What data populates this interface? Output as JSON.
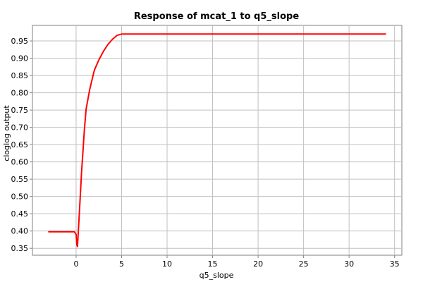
{
  "chart_data": {
    "type": "line",
    "title": "Response of mcat_1 to q5_slope",
    "xlabel": "q5_slope",
    "ylabel": "cloglog output",
    "xlim": [
      -4.8,
      35.8
    ],
    "ylim": [
      0.33,
      0.995
    ],
    "xticks": [
      0,
      5,
      10,
      15,
      20,
      25,
      30,
      35
    ],
    "yticks": [
      0.35,
      0.4,
      0.45,
      0.5,
      0.55,
      0.6,
      0.65,
      0.7,
      0.75,
      0.8,
      0.85,
      0.9,
      0.95
    ],
    "grid": true,
    "series": [
      {
        "color": "#ff0000",
        "x": [
          -3.0,
          -0.2,
          0.0,
          0.08,
          0.15,
          0.35,
          0.6,
          0.9,
          1.1,
          1.15,
          1.5,
          2.0,
          2.5,
          3.0,
          3.5,
          4.0,
          4.5,
          5.0,
          6.0,
          10.0,
          20.0,
          30.0,
          34.0
        ],
        "y": [
          0.398,
          0.398,
          0.39,
          0.36,
          0.355,
          0.45,
          0.57,
          0.69,
          0.752,
          0.76,
          0.81,
          0.865,
          0.895,
          0.92,
          0.94,
          0.955,
          0.966,
          0.97,
          0.97,
          0.97,
          0.97,
          0.97,
          0.97
        ]
      }
    ]
  }
}
